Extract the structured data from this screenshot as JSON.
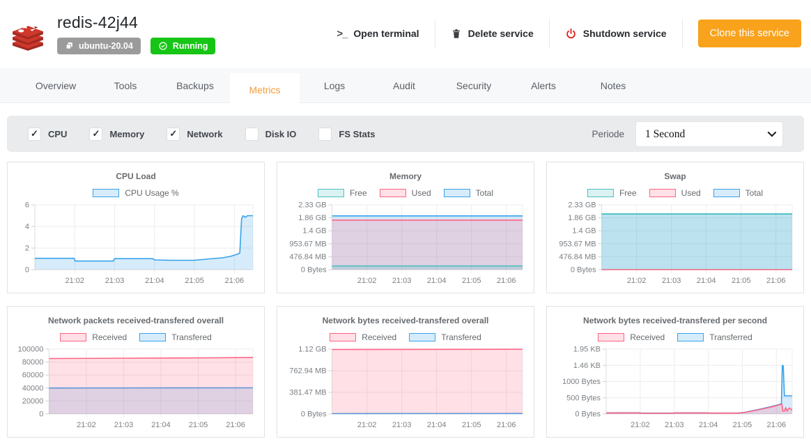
{
  "header": {
    "title": "redis-42j44",
    "os_badge": "ubuntu-20.04",
    "status_badge": "Running",
    "actions": {
      "open_terminal": "Open terminal",
      "delete_service": "Delete service",
      "shutdown_service": "Shutdown service",
      "clone_service": "Clone this service"
    }
  },
  "tabs": [
    {
      "label": "Overview",
      "active": false
    },
    {
      "label": "Tools",
      "active": false
    },
    {
      "label": "Backups",
      "active": false
    },
    {
      "label": "Metrics",
      "active": true
    },
    {
      "label": "Logs",
      "active": false
    },
    {
      "label": "Audit",
      "active": false
    },
    {
      "label": "Security",
      "active": false
    },
    {
      "label": "Alerts",
      "active": false
    },
    {
      "label": "Notes",
      "active": false
    }
  ],
  "filters": {
    "checkboxes": [
      {
        "label": "CPU",
        "checked": true
      },
      {
        "label": "Memory",
        "checked": true
      },
      {
        "label": "Network",
        "checked": true
      },
      {
        "label": "Disk IO",
        "checked": false
      },
      {
        "label": "FS Stats",
        "checked": false
      }
    ],
    "periode_label": "Periode",
    "periode_value": "1 Second"
  },
  "colors": {
    "clone_button_orange": "#f9a21c",
    "running_green": "#16c516",
    "active_tab_orange": "#f59b3c",
    "shutdown_red": "#e01f1f",
    "series_pink": "#ff6384",
    "series_blue": "#36a2eb",
    "series_teal": "#4bc0c0"
  },
  "chart_data": [
    {
      "type": "area",
      "title": "CPU Load",
      "unit": "percent",
      "grid": true,
      "legend_position": "top",
      "ylim": [
        0,
        6
      ],
      "y_ticks": {
        "labels": [
          "6",
          "4",
          "2",
          "0"
        ],
        "values": [
          6,
          4,
          2,
          0
        ]
      },
      "x_ticks": {
        "labels": [
          "21:02",
          "21:03",
          "21:04",
          "21:05",
          "21:06"
        ],
        "positions": [
          0.183,
          0.366,
          0.549,
          0.732,
          0.915
        ]
      },
      "series": [
        {
          "name": "CPU Usage %",
          "color": "#36a2eb",
          "fill": "rgba(54,162,235,0.2)",
          "points": [
            [
              0,
              1.05
            ],
            [
              0.18,
              1.05
            ],
            [
              0.185,
              0.8
            ],
            [
              0.36,
              0.8
            ],
            [
              0.365,
              1.02
            ],
            [
              0.54,
              1.02
            ],
            [
              0.55,
              0.9
            ],
            [
              0.62,
              0.87
            ],
            [
              0.73,
              0.87
            ],
            [
              0.8,
              1.0
            ],
            [
              0.86,
              1.1
            ],
            [
              0.9,
              1.25
            ],
            [
              0.93,
              1.45
            ],
            [
              0.94,
              1.55
            ],
            [
              0.948,
              4.7
            ],
            [
              0.955,
              5.0
            ],
            [
              0.965,
              4.85
            ],
            [
              0.975,
              5.0
            ],
            [
              1,
              5.0
            ]
          ]
        }
      ]
    },
    {
      "type": "area",
      "title": "Memory",
      "unit": "MB",
      "grid": true,
      "legend_position": "top",
      "ylim": [
        0,
        2384.19
      ],
      "y_ticks": {
        "labels": [
          "2.33 GB",
          "1.86 GB",
          "1.4 GB",
          "953.67 MB",
          "476.84 MB",
          "0 Bytes"
        ],
        "values": [
          2384.19,
          1907.35,
          1430.51,
          953.67,
          476.84,
          0
        ]
      },
      "x_ticks": {
        "labels": [
          "21:02",
          "21:03",
          "21:04",
          "21:05",
          "21:06"
        ],
        "positions": [
          0.183,
          0.366,
          0.549,
          0.732,
          0.915
        ]
      },
      "series": [
        {
          "name": "Free",
          "color": "#4bc0c0",
          "fill": "rgba(75,192,192,0.2)",
          "points": [
            [
              0,
              135
            ],
            [
              1,
              135
            ]
          ]
        },
        {
          "name": "Used",
          "color": "#ff6384",
          "fill": "rgba(255,99,132,0.2)",
          "points": [
            [
              0,
              1825
            ],
            [
              1,
              1825
            ]
          ]
        },
        {
          "name": "Total",
          "color": "#36a2eb",
          "fill": "rgba(54,162,235,0.2)",
          "points": [
            [
              0,
              1980
            ],
            [
              1,
              1980
            ]
          ]
        }
      ]
    },
    {
      "type": "area",
      "title": "Swap",
      "unit": "MB",
      "grid": true,
      "legend_position": "top",
      "ylim": [
        0,
        2384.19
      ],
      "y_ticks": {
        "labels": [
          "2.33 GB",
          "1.86 GB",
          "1.4 GB",
          "953.67 MB",
          "476.84 MB",
          "0 Bytes"
        ],
        "values": [
          2384.19,
          1907.35,
          1430.51,
          953.67,
          476.84,
          0
        ]
      },
      "x_ticks": {
        "labels": [
          "21:02",
          "21:03",
          "21:04",
          "21:05",
          "21:06"
        ],
        "positions": [
          0.183,
          0.366,
          0.549,
          0.732,
          0.915
        ]
      },
      "series": [
        {
          "name": "Free",
          "color": "#4bc0c0",
          "fill": "rgba(75,192,192,0.2)",
          "points": [
            [
              0,
              2048
            ],
            [
              1,
              2048
            ]
          ]
        },
        {
          "name": "Used",
          "color": "#ff6384",
          "fill": "rgba(255,99,132,0.2)",
          "points": [
            [
              0,
              4
            ],
            [
              1,
              4
            ]
          ]
        },
        {
          "name": "Total",
          "color": "#36a2eb",
          "fill": "rgba(54,162,235,0.2)",
          "points": [
            [
              0,
              2048
            ],
            [
              1,
              2048
            ]
          ]
        }
      ]
    },
    {
      "type": "area",
      "title": "Network packets received-transfered overall",
      "unit": "packets",
      "grid": true,
      "legend_position": "top",
      "ylim": [
        0,
        100000
      ],
      "y_ticks": {
        "labels": [
          "100000",
          "80000",
          "60000",
          "40000",
          "20000",
          "0"
        ],
        "values": [
          100000,
          80000,
          60000,
          40000,
          20000,
          0
        ]
      },
      "x_ticks": {
        "labels": [
          "21:02",
          "21:03",
          "21:04",
          "21:05",
          "21:06"
        ],
        "positions": [
          0.183,
          0.366,
          0.549,
          0.732,
          0.915
        ]
      },
      "series": [
        {
          "name": "Received",
          "color": "#ff6384",
          "fill": "rgba(255,99,132,0.2)",
          "points": [
            [
              0,
              85500
            ],
            [
              0.4,
              86000
            ],
            [
              0.8,
              86600
            ],
            [
              1,
              87200
            ]
          ]
        },
        {
          "name": "Transfered",
          "color": "#36a2eb",
          "fill": "rgba(54,162,235,0.2)",
          "points": [
            [
              0,
              40000
            ],
            [
              1,
              40300
            ]
          ]
        }
      ]
    },
    {
      "type": "area",
      "title": "Network bytes received-transfered overall",
      "unit": "MB",
      "grid": true,
      "legend_position": "top",
      "ylim": [
        0,
        1144.41
      ],
      "y_ticks": {
        "labels": [
          "1.12 GB",
          "762.94 MB",
          "381.47 MB",
          "0 Bytes"
        ],
        "values": [
          1144.41,
          762.94,
          381.47,
          0
        ]
      },
      "x_ticks": {
        "labels": [
          "21:02",
          "21:03",
          "21:04",
          "21:05",
          "21:06"
        ],
        "positions": [
          0.183,
          0.366,
          0.549,
          0.732,
          0.915
        ]
      },
      "series": [
        {
          "name": "Received",
          "color": "#ff6384",
          "fill": "rgba(255,99,132,0.2)",
          "points": [
            [
              0,
              1138
            ],
            [
              1,
              1142
            ]
          ]
        },
        {
          "name": "Transfered",
          "color": "#36a2eb",
          "fill": "rgba(54,162,235,0.2)",
          "points": [
            [
              0,
              6
            ],
            [
              1,
              8
            ]
          ]
        }
      ]
    },
    {
      "type": "area",
      "title": "Network bytes received-transfered per second",
      "unit": "bytes",
      "grid": true,
      "legend_position": "top",
      "ylim": [
        0,
        2000
      ],
      "y_ticks": {
        "labels": [
          "1.95 KB",
          "1.46 KB",
          "1000 Bytes",
          "500 Bytes",
          "0 Bytes"
        ],
        "values": [
          2000,
          1500,
          1000,
          500,
          0
        ]
      },
      "x_ticks": {
        "labels": [
          "21:02",
          "21:03",
          "21:04",
          "21:05",
          "21:06"
        ],
        "positions": [
          0.183,
          0.366,
          0.549,
          0.732,
          0.915
        ]
      },
      "series": [
        {
          "name": "Received",
          "color": "#ff6384",
          "fill": "rgba(255,99,132,0.2)",
          "points": [
            [
              0,
              30
            ],
            [
              0.18,
              32
            ],
            [
              0.19,
              22
            ],
            [
              0.36,
              22
            ],
            [
              0.37,
              30
            ],
            [
              0.54,
              30
            ],
            [
              0.55,
              25
            ],
            [
              0.71,
              25
            ],
            [
              0.74,
              40
            ],
            [
              0.82,
              130
            ],
            [
              0.9,
              230
            ],
            [
              0.935,
              290
            ],
            [
              0.945,
              300
            ],
            [
              0.95,
              90
            ],
            [
              0.958,
              85
            ],
            [
              0.965,
              195
            ],
            [
              0.972,
              90
            ],
            [
              0.985,
              185
            ],
            [
              1,
              120
            ]
          ]
        },
        {
          "name": "Transferred",
          "color": "#36a2eb",
          "fill": "rgba(54,162,235,0.2)",
          "points": [
            [
              0,
              35
            ],
            [
              0.18,
              36
            ],
            [
              0.19,
              26
            ],
            [
              0.36,
              26
            ],
            [
              0.37,
              34
            ],
            [
              0.54,
              34
            ],
            [
              0.55,
              28
            ],
            [
              0.71,
              28
            ],
            [
              0.74,
              45
            ],
            [
              0.82,
              140
            ],
            [
              0.9,
              245
            ],
            [
              0.935,
              300
            ],
            [
              0.942,
              310
            ],
            [
              0.947,
              1500
            ],
            [
              0.952,
              1480
            ],
            [
              0.958,
              560
            ],
            [
              1,
              560
            ]
          ]
        }
      ]
    }
  ]
}
